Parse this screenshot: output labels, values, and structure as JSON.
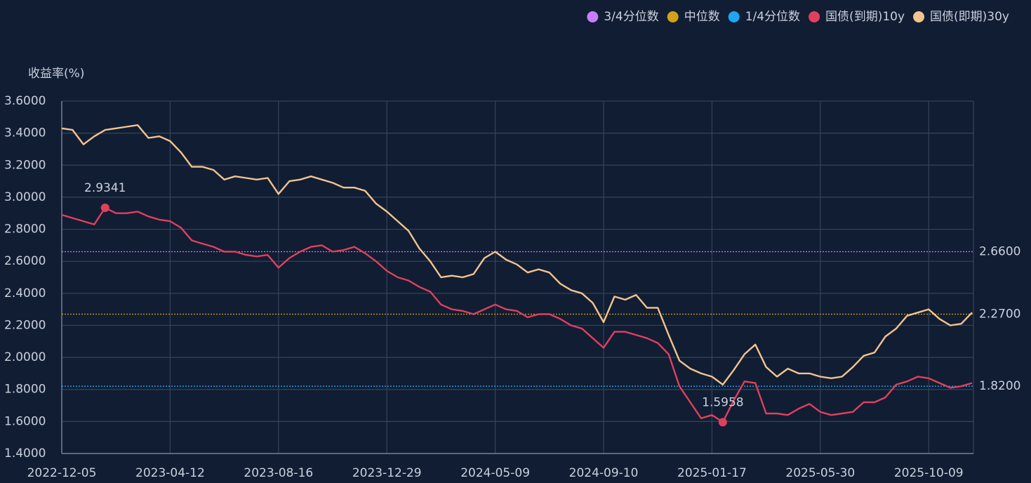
{
  "chart_data": {
    "type": "line",
    "y_axis_title": "收益率(%)",
    "ylim": [
      1.4,
      3.6
    ],
    "yticks": [
      {
        "value": 1.4,
        "label": "1.4000"
      },
      {
        "value": 1.6,
        "label": "1.6000"
      },
      {
        "value": 1.8,
        "label": "1.8000"
      },
      {
        "value": 2.0,
        "label": "2.0000"
      },
      {
        "value": 2.2,
        "label": "2.2000"
      },
      {
        "value": 2.4,
        "label": "2.4000"
      },
      {
        "value": 2.6,
        "label": "2.6000"
      },
      {
        "value": 2.8,
        "label": "2.8000"
      },
      {
        "value": 3.0,
        "label": "3.0000"
      },
      {
        "value": 3.2,
        "label": "3.2000"
      },
      {
        "value": 3.4,
        "label": "3.4000"
      },
      {
        "value": 3.6,
        "label": "3.6000"
      }
    ],
    "grid": true,
    "legend_position": "top-right",
    "categories": [
      "2022-12-05",
      null,
      null,
      null,
      null,
      null,
      null,
      null,
      null,
      null,
      "2023-04-12",
      null,
      null,
      null,
      null,
      null,
      null,
      null,
      null,
      null,
      "2023-08-16",
      null,
      null,
      null,
      null,
      null,
      null,
      null,
      null,
      null,
      "2023-12-29",
      null,
      null,
      null,
      null,
      null,
      null,
      null,
      null,
      null,
      "2024-05-09",
      null,
      null,
      null,
      null,
      null,
      null,
      null,
      null,
      null,
      "2024-09-10",
      null,
      null,
      null,
      null,
      null,
      null,
      null,
      null,
      null,
      "2025-01-17",
      null,
      null,
      null,
      null,
      null,
      null,
      null,
      null,
      null,
      "2025-05-30",
      null,
      null,
      null,
      null,
      null,
      null,
      null,
      null,
      null,
      "2025-10-09",
      null,
      null,
      null,
      null
    ],
    "reference_lines": [
      {
        "name": "3/4分位数",
        "color": "#c77dff",
        "value": {
          "value": 2.66,
          "label": "2.6600"
        }
      },
      {
        "name": "中位数",
        "color": "#d4a017",
        "value": {
          "value": 2.27,
          "label": "2.2700"
        }
      },
      {
        "name": "1/4分位数",
        "color": "#1ea7f0",
        "value": {
          "value": 1.82,
          "label": "1.8200"
        }
      }
    ],
    "series": [
      {
        "name": "国债(到期)10y",
        "color": "#e0405d",
        "values": [
          2.89,
          2.87,
          2.85,
          2.83,
          2.9341,
          2.9,
          2.9,
          2.91,
          2.88,
          2.86,
          2.85,
          2.81,
          2.73,
          2.71,
          2.69,
          2.66,
          2.66,
          2.64,
          2.63,
          2.64,
          2.56,
          2.62,
          2.66,
          2.69,
          2.7,
          2.66,
          2.67,
          2.69,
          2.65,
          2.6,
          2.54,
          2.5,
          2.48,
          2.44,
          2.41,
          2.33,
          2.3,
          2.29,
          2.27,
          2.3,
          2.33,
          2.3,
          2.29,
          2.25,
          2.27,
          2.27,
          2.24,
          2.2,
          2.18,
          2.12,
          2.06,
          2.16,
          2.16,
          2.14,
          2.12,
          2.09,
          2.02,
          1.82,
          1.72,
          1.62,
          1.64,
          1.5958,
          1.73,
          1.85,
          1.84,
          1.65,
          1.65,
          1.64,
          1.68,
          1.71,
          1.66,
          1.64,
          1.65,
          1.66,
          1.72,
          1.72,
          1.75,
          1.83,
          1.85,
          1.88,
          1.87,
          1.84,
          1.81,
          1.82,
          1.84
        ],
        "value_labels": [
          null,
          null,
          null,
          null,
          "2.9341",
          null,
          null,
          null,
          null,
          null,
          null,
          null,
          null,
          null,
          null,
          null,
          null,
          null,
          null,
          null,
          null,
          null,
          null,
          null,
          null,
          null,
          null,
          null,
          null,
          null,
          null,
          null,
          null,
          null,
          null,
          null,
          null,
          null,
          null,
          null,
          null,
          null,
          null,
          null,
          null,
          null,
          null,
          null,
          null,
          null,
          null,
          null,
          null,
          null,
          null,
          null,
          null,
          null,
          null,
          null,
          null,
          "1.5958",
          null,
          null,
          null,
          null,
          null,
          null,
          null,
          null,
          null,
          null,
          null,
          null,
          null,
          null,
          null,
          null,
          null,
          null,
          null,
          null,
          null,
          null,
          null
        ]
      },
      {
        "name": "国债(即期)30y",
        "color": "#f2c48e",
        "values": [
          3.43,
          3.42,
          3.33,
          3.38,
          3.42,
          3.43,
          3.44,
          3.45,
          3.37,
          3.38,
          3.35,
          3.28,
          3.19,
          3.19,
          3.17,
          3.11,
          3.13,
          3.12,
          3.11,
          3.12,
          3.02,
          3.1,
          3.11,
          3.13,
          3.11,
          3.09,
          3.06,
          3.06,
          3.04,
          2.96,
          2.91,
          2.85,
          2.79,
          2.68,
          2.6,
          2.5,
          2.51,
          2.5,
          2.52,
          2.62,
          2.66,
          2.61,
          2.58,
          2.53,
          2.55,
          2.53,
          2.46,
          2.42,
          2.4,
          2.34,
          2.22,
          2.38,
          2.36,
          2.39,
          2.31,
          2.31,
          2.14,
          1.98,
          1.93,
          1.9,
          1.88,
          1.83,
          1.92,
          2.02,
          2.08,
          1.94,
          1.88,
          1.93,
          1.9,
          1.9,
          1.88,
          1.87,
          1.88,
          1.94,
          2.01,
          2.03,
          2.13,
          2.18,
          2.26,
          2.28,
          2.3,
          2.24,
          2.2,
          2.21,
          2.28
        ]
      }
    ]
  }
}
